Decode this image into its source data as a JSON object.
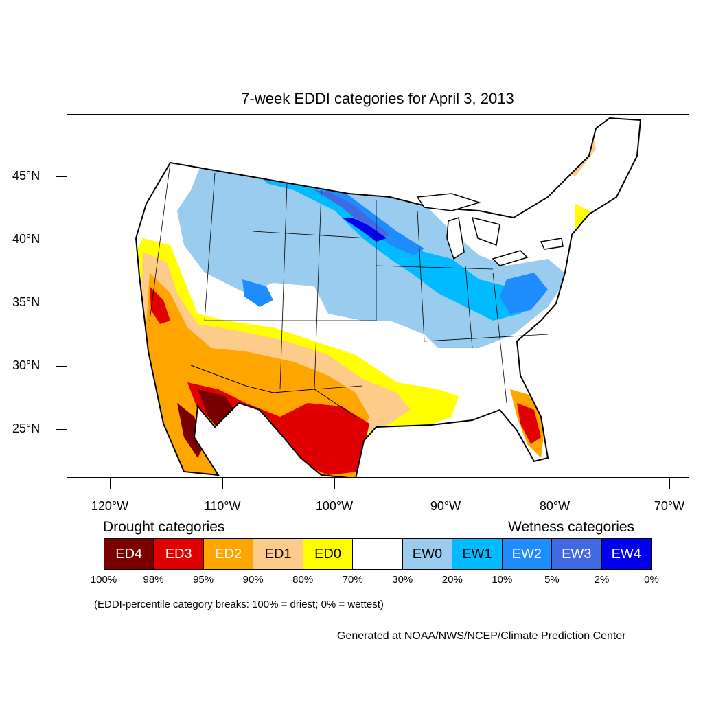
{
  "title": "7-week EDDI categories for April 3, 2013",
  "axes": {
    "lat_labels": [
      "45°N",
      "40°N",
      "35°N",
      "30°N",
      "25°N"
    ],
    "lon_labels": [
      "120°W",
      "110°W",
      "100°W",
      "90°W",
      "80°W",
      "70°W"
    ]
  },
  "legend": {
    "drought_heading": "Drought categories",
    "wetness_heading": "Wetness categories",
    "categories": [
      {
        "label": "ED4",
        "color": "#7a0000",
        "text_color": "#ffffff"
      },
      {
        "label": "ED3",
        "color": "#e10000",
        "text_color": "#ffffff"
      },
      {
        "label": "ED2",
        "color": "#ffa500",
        "text_color": "#ffffff"
      },
      {
        "label": "ED1",
        "color": "#fdcc8a",
        "text_color": "#000000"
      },
      {
        "label": "ED0",
        "color": "#ffff00",
        "text_color": "#000000"
      },
      {
        "label": "",
        "color": "#ffffff",
        "text_color": "#000000"
      },
      {
        "label": "EW0",
        "color": "#99ccee",
        "text_color": "#000000"
      },
      {
        "label": "EW1",
        "color": "#00bbff",
        "text_color": "#000000"
      },
      {
        "label": "EW2",
        "color": "#1e8cff",
        "text_color": "#ffffff"
      },
      {
        "label": "EW3",
        "color": "#4169e1",
        "text_color": "#ffffff"
      },
      {
        "label": "EW4",
        "color": "#0000ee",
        "text_color": "#ffffff"
      }
    ],
    "breaks": [
      "100%",
      "98%",
      "95%",
      "90%",
      "80%",
      "70%",
      "30%",
      "20%",
      "10%",
      "5%",
      "2%",
      "0%"
    ],
    "note": "(EDDI-percentile category breaks: 100% = driest; 0% = wettest)"
  },
  "credit": "Generated at NOAA/NWS/NCEP/Climate Prediction Center"
}
